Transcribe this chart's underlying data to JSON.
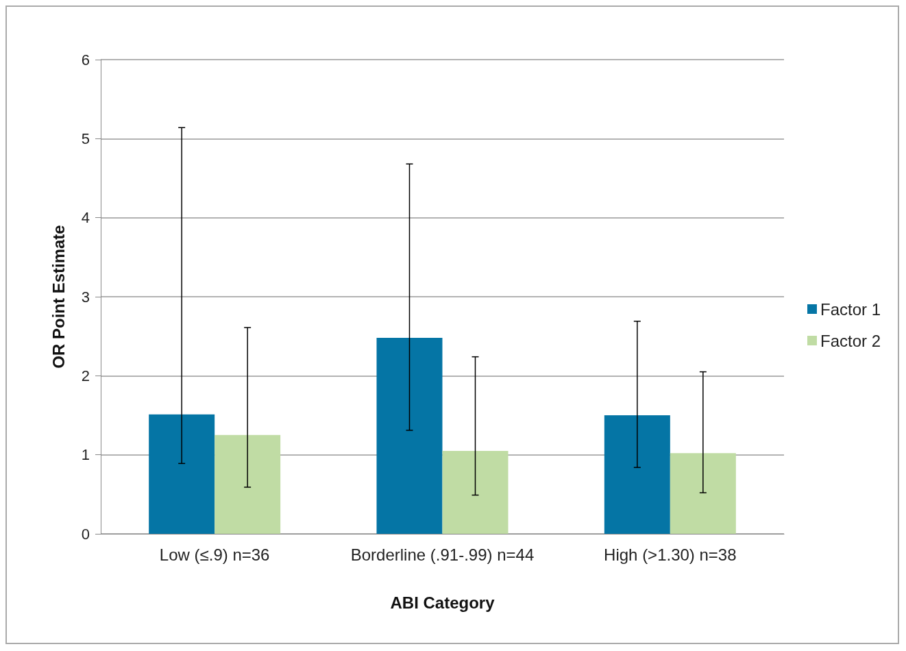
{
  "chart_data": {
    "type": "bar",
    "xlabel": "ABI Category",
    "ylabel": "OR Point Estimate",
    "categories": [
      "Low (≤.9) n=36",
      "Borderline (.91-.99) n=44",
      "High (>1.30) n=38"
    ],
    "series": [
      {
        "name": "Factor 1",
        "color": "#0575a5",
        "values": [
          1.51,
          2.48,
          1.5
        ],
        "errors": [
          [
            0.89,
            5.14
          ],
          [
            1.31,
            4.68
          ],
          [
            0.84,
            2.69
          ]
        ]
      },
      {
        "name": "Factor 2",
        "color": "#c0dca4",
        "values": [
          1.25,
          1.05,
          1.02
        ],
        "errors": [
          [
            0.59,
            2.61
          ],
          [
            0.49,
            2.24
          ],
          [
            0.52,
            2.05
          ]
        ]
      }
    ],
    "ylim": [
      0,
      6
    ],
    "yticks": [
      0,
      1,
      2,
      3,
      4,
      5,
      6
    ],
    "grid": "y",
    "legend": "right"
  }
}
